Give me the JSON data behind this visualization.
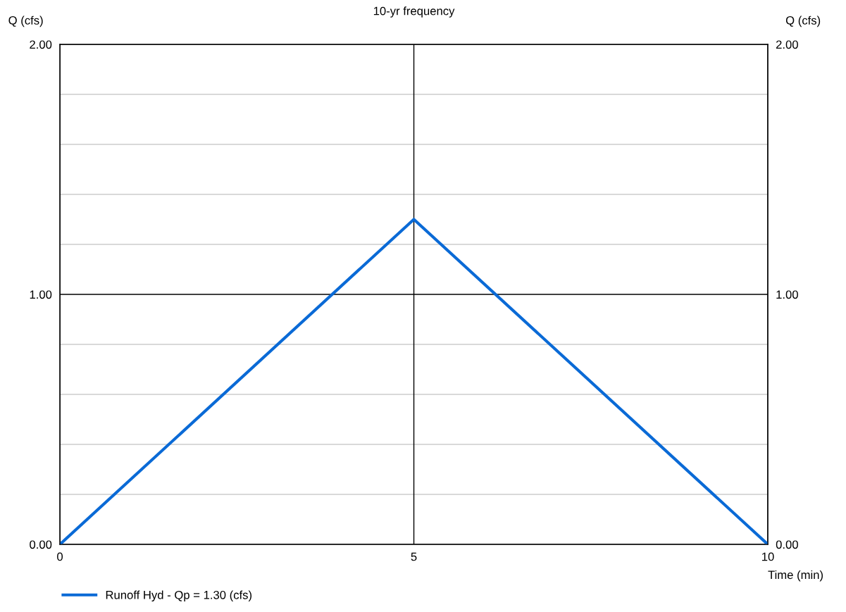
{
  "chart_data": {
    "type": "line",
    "title": "10-yr frequency",
    "xlabel": "Time (min)",
    "ylabel": "Q (cfs)",
    "y2label": "Q (cfs)",
    "x": [
      0,
      5,
      10
    ],
    "series": [
      {
        "name": "Runoff Hyd - Qp = 1.30 (cfs)",
        "color": "#0a6ad6",
        "values": [
          0,
          1.3,
          0
        ]
      }
    ],
    "xlim": [
      0,
      10
    ],
    "xticks": [
      0,
      5,
      10
    ],
    "ylim": [
      0,
      2
    ],
    "yticks": [
      {
        "value": 0,
        "label": "0.00"
      },
      {
        "value": 0.2,
        "label": null
      },
      {
        "value": 0.4,
        "label": null
      },
      {
        "value": 0.6,
        "label": null
      },
      {
        "value": 0.8,
        "label": null
      },
      {
        "value": 1,
        "label": "1.00"
      },
      {
        "value": 1.2,
        "label": null
      },
      {
        "value": 1.4,
        "label": null
      },
      {
        "value": 1.6,
        "label": null
      },
      {
        "value": 1.8,
        "label": null
      },
      {
        "value": 2,
        "label": "2.00"
      }
    ],
    "y2lim": [
      0,
      2
    ],
    "y2ticks": [
      {
        "value": 0,
        "label": "0.00"
      },
      {
        "value": 1,
        "label": "1.00"
      },
      {
        "value": 2,
        "label": "2.00"
      }
    ],
    "grid": true,
    "legend": "bottom left",
    "marker": "none",
    "line_style": "solid"
  }
}
